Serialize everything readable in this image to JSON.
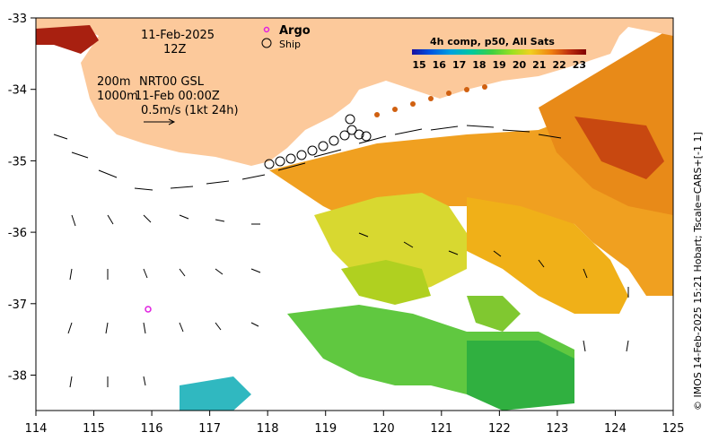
{
  "map": {
    "date": "11-Feb-2025",
    "time": "12Z",
    "depth_a": "200m",
    "label_a": "NRT00 GSL",
    "depth_b": "1000m",
    "label_b": "11-Feb 00:00Z",
    "current_scale": "0.5m/s (1kt 24h)",
    "legend": {
      "argo": "Argo",
      "ship": "Ship"
    },
    "colorbar": {
      "title": "4h comp, p50, All Sats",
      "ticks": [
        "15",
        "16",
        "17",
        "18",
        "19",
        "20",
        "21",
        "22",
        "23"
      ],
      "colors": [
        "#1a10a0",
        "#0050e0",
        "#00a0e0",
        "#00c8a0",
        "#40d040",
        "#a0e020",
        "#f0d020",
        "#f08010",
        "#c03010",
        "#800000"
      ]
    },
    "x_ticks": [
      "114",
      "115",
      "116",
      "117",
      "118",
      "119",
      "120",
      "121",
      "122",
      "123",
      "124",
      "125"
    ],
    "y_ticks": [
      "-33",
      "-34",
      "-35",
      "-36",
      "-37",
      "-38"
    ],
    "credit": "© IMOS 14-Feb-2025 15:21 Hobart; Tscale=CARS+[-1 1]",
    "land_color": "#fcc99b",
    "argo_color": "#e020e0"
  }
}
